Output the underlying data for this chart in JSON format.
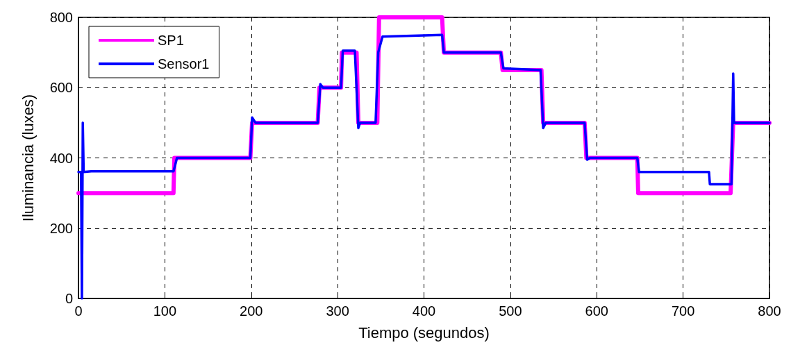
{
  "chart_data": {
    "type": "line",
    "xlabel": "Tiempo (segundos)",
    "ylabel": "Iluminancia (luxes)",
    "xlim": [
      0,
      800
    ],
    "xticks": [
      0,
      100,
      200,
      300,
      400,
      500,
      600,
      700,
      800
    ],
    "ylim": [
      0,
      800
    ],
    "yticks": [
      0,
      200,
      400,
      600,
      800
    ],
    "grid": true,
    "legend": "top left",
    "marker": "none",
    "line_style": "solid",
    "series": [
      {
        "name": "SP1",
        "color": "#ff00ff",
        "x": [
          0,
          110,
          111,
          199,
          201,
          277,
          279,
          304,
          305,
          322,
          324,
          346,
          348,
          421,
          423,
          489,
          491,
          536,
          538,
          586,
          588,
          647,
          648,
          755,
          758,
          800
        ],
        "values": [
          300,
          300,
          400,
          400,
          500,
          500,
          600,
          600,
          700,
          700,
          500,
          500,
          800,
          800,
          700,
          700,
          650,
          650,
          500,
          500,
          400,
          400,
          300,
          300,
          500,
          500
        ]
      },
      {
        "name": "Sensor1",
        "color": "#0000ff",
        "x": [
          0,
          3,
          4,
          5,
          6,
          15,
          110,
          112,
          114,
          199,
          201,
          205,
          277,
          280,
          283,
          304,
          306,
          320,
          324,
          326,
          344,
          347,
          352,
          421,
          423,
          489,
          492,
          535,
          538,
          541,
          586,
          589,
          592,
          647,
          649,
          730,
          731,
          756,
          758,
          759,
          800
        ],
        "values": [
          360,
          360,
          0,
          500,
          360,
          362,
          362,
          380,
          400,
          400,
          515,
          500,
          500,
          610,
          600,
          600,
          705,
          705,
          485,
          500,
          500,
          700,
          745,
          750,
          700,
          700,
          655,
          650,
          485,
          500,
          500,
          395,
          400,
          400,
          360,
          360,
          325,
          325,
          640,
          500,
          500
        ]
      }
    ]
  }
}
